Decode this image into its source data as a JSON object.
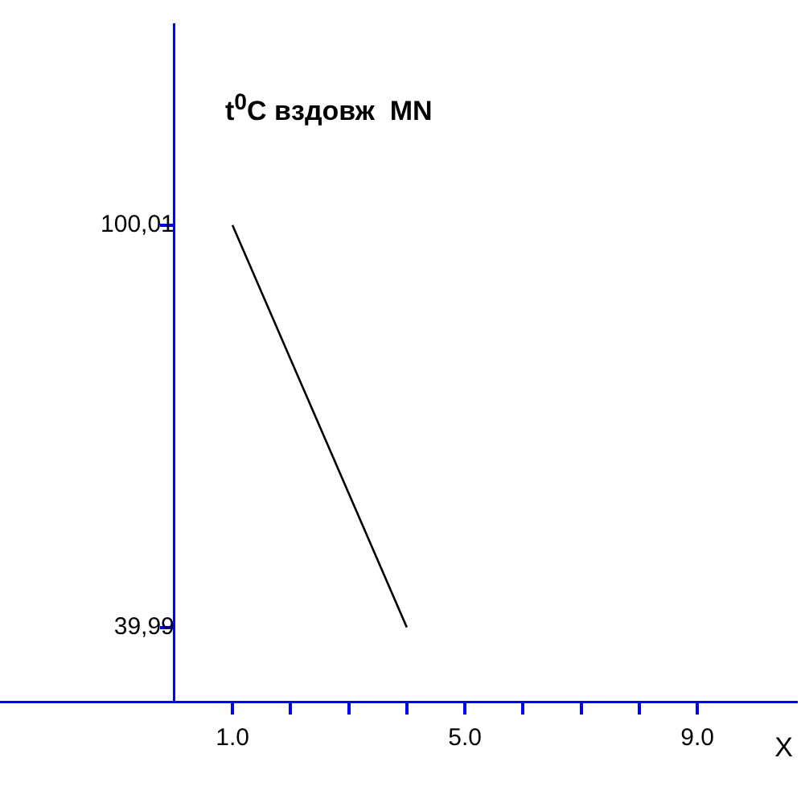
{
  "chart_data": {
    "type": "line",
    "title": "t$^{0}$C вздовж  MN",
    "xlabel": "X",
    "x": [
      1,
      2,
      3,
      4
    ],
    "series": [
      {
        "color": "#000000",
        "values": [
          100.01,
          80,
          60,
          39.99
        ]
      }
    ],
    "xlim": [
      -3,
      10.7
    ],
    "ylim": [
      28.9,
      130
    ],
    "xticks": [
      {
        "value": 1,
        "label": "1.0"
      },
      {
        "value": 2,
        "label": null
      },
      {
        "value": 3,
        "label": null
      },
      {
        "value": 4,
        "label": null
      },
      {
        "value": 5,
        "label": "5.0"
      },
      {
        "value": 6,
        "label": null
      },
      {
        "value": 7,
        "label": null
      },
      {
        "value": 8,
        "label": null
      },
      {
        "value": 9,
        "label": "9.0"
      }
    ],
    "yticks": [
      {
        "value": 39.99,
        "label": "39,99"
      },
      {
        "value": 100.01,
        "label": "100,01"
      }
    ],
    "grid": false,
    "legend": false,
    "marker": "none",
    "line_style": "solid"
  }
}
